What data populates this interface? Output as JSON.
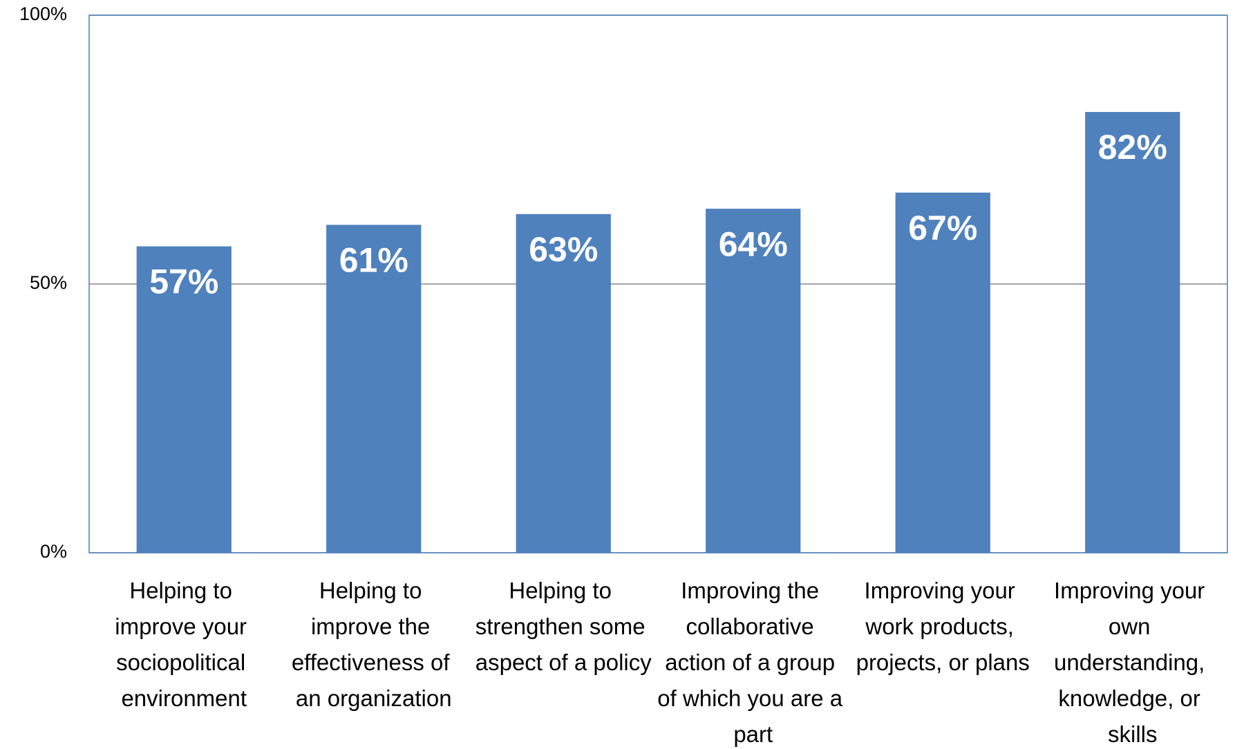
{
  "chart_data": {
    "type": "bar",
    "categories": [
      "Helping to improve your sociopolitical environment",
      "Helping to improve the effectiveness of an organization",
      "Helping to strengthen some aspect of a policy",
      "Improving the collaborative action of a group of which you are a part",
      "Improving your work products, projects, or plans",
      "Improving your own understanding, knowledge, or skills"
    ],
    "values": [
      57,
      61,
      63,
      64,
      67,
      82
    ],
    "value_labels": [
      "57%",
      "61%",
      "63%",
      "64%",
      "67%",
      "82%"
    ],
    "color": "#4f81bd",
    "ylim": [
      0,
      100
    ],
    "yticks": [
      {
        "value": 0,
        "label": "0%"
      },
      {
        "value": 50,
        "label": "50%"
      },
      {
        "value": 100,
        "label": "100%"
      }
    ],
    "grid": true
  }
}
